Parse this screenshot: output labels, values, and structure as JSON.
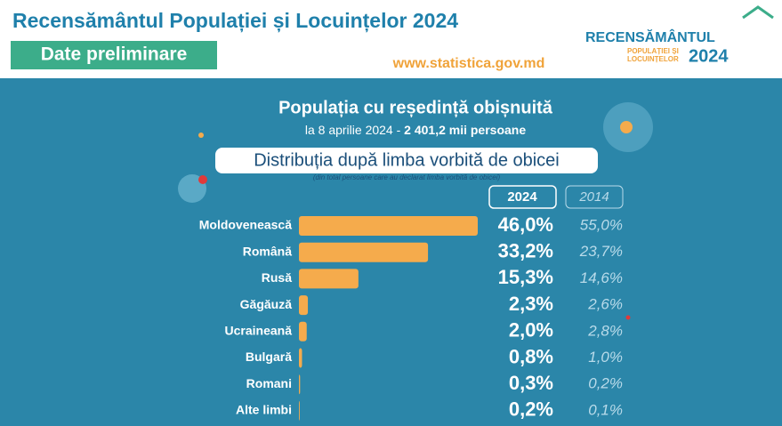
{
  "header": {
    "title": "Recensământul Populației și Locuințelor 2024",
    "badge": "Date preliminare",
    "url": "www.statistica.gov.md",
    "logo": {
      "word": "RECENSĂMÂNTUL",
      "line1": "POPULAȚIEI ȘI",
      "line2": "LOCUINȚELOR",
      "year": "2024"
    }
  },
  "chart_data": {
    "type": "bar",
    "orientation": "horizontal",
    "title": "Populația cu reședință obișnuită",
    "subtitle": [
      "la 8 aprilie 2024 -",
      "2 401,2 mii persoane"
    ],
    "heading": "Distribuția după limba vorbită de obicei",
    "note": "(din total persoane care au declarat limba vorbită de obicei)",
    "categories": [
      "Moldovenească",
      "Română",
      "Rusă",
      "Găgăuză",
      "Ucraineană",
      "Bulgară",
      "Romani",
      "Alte limbi"
    ],
    "series": [
      {
        "name": "2024",
        "color": "#f5ab4c",
        "values": [
          46.0,
          33.2,
          15.3,
          2.3,
          2.0,
          0.8,
          0.3,
          0.2
        ],
        "value_labels": [
          "46,0%",
          "33,2%",
          "15,3%",
          "2,3%",
          "2,0%",
          "0,8%",
          "0,3%",
          "0,2%"
        ]
      },
      {
        "name": "2014",
        "color": "#b9dbea",
        "values": [
          55.0,
          23.7,
          14.6,
          2.6,
          2.8,
          1.0,
          0.2,
          0.1
        ],
        "value_labels": [
          "55,0%",
          "23,7%",
          "14,6%",
          "2,6%",
          "2,8%",
          "1,0%",
          "0,2%",
          "0,1%"
        ]
      }
    ]
  }
}
